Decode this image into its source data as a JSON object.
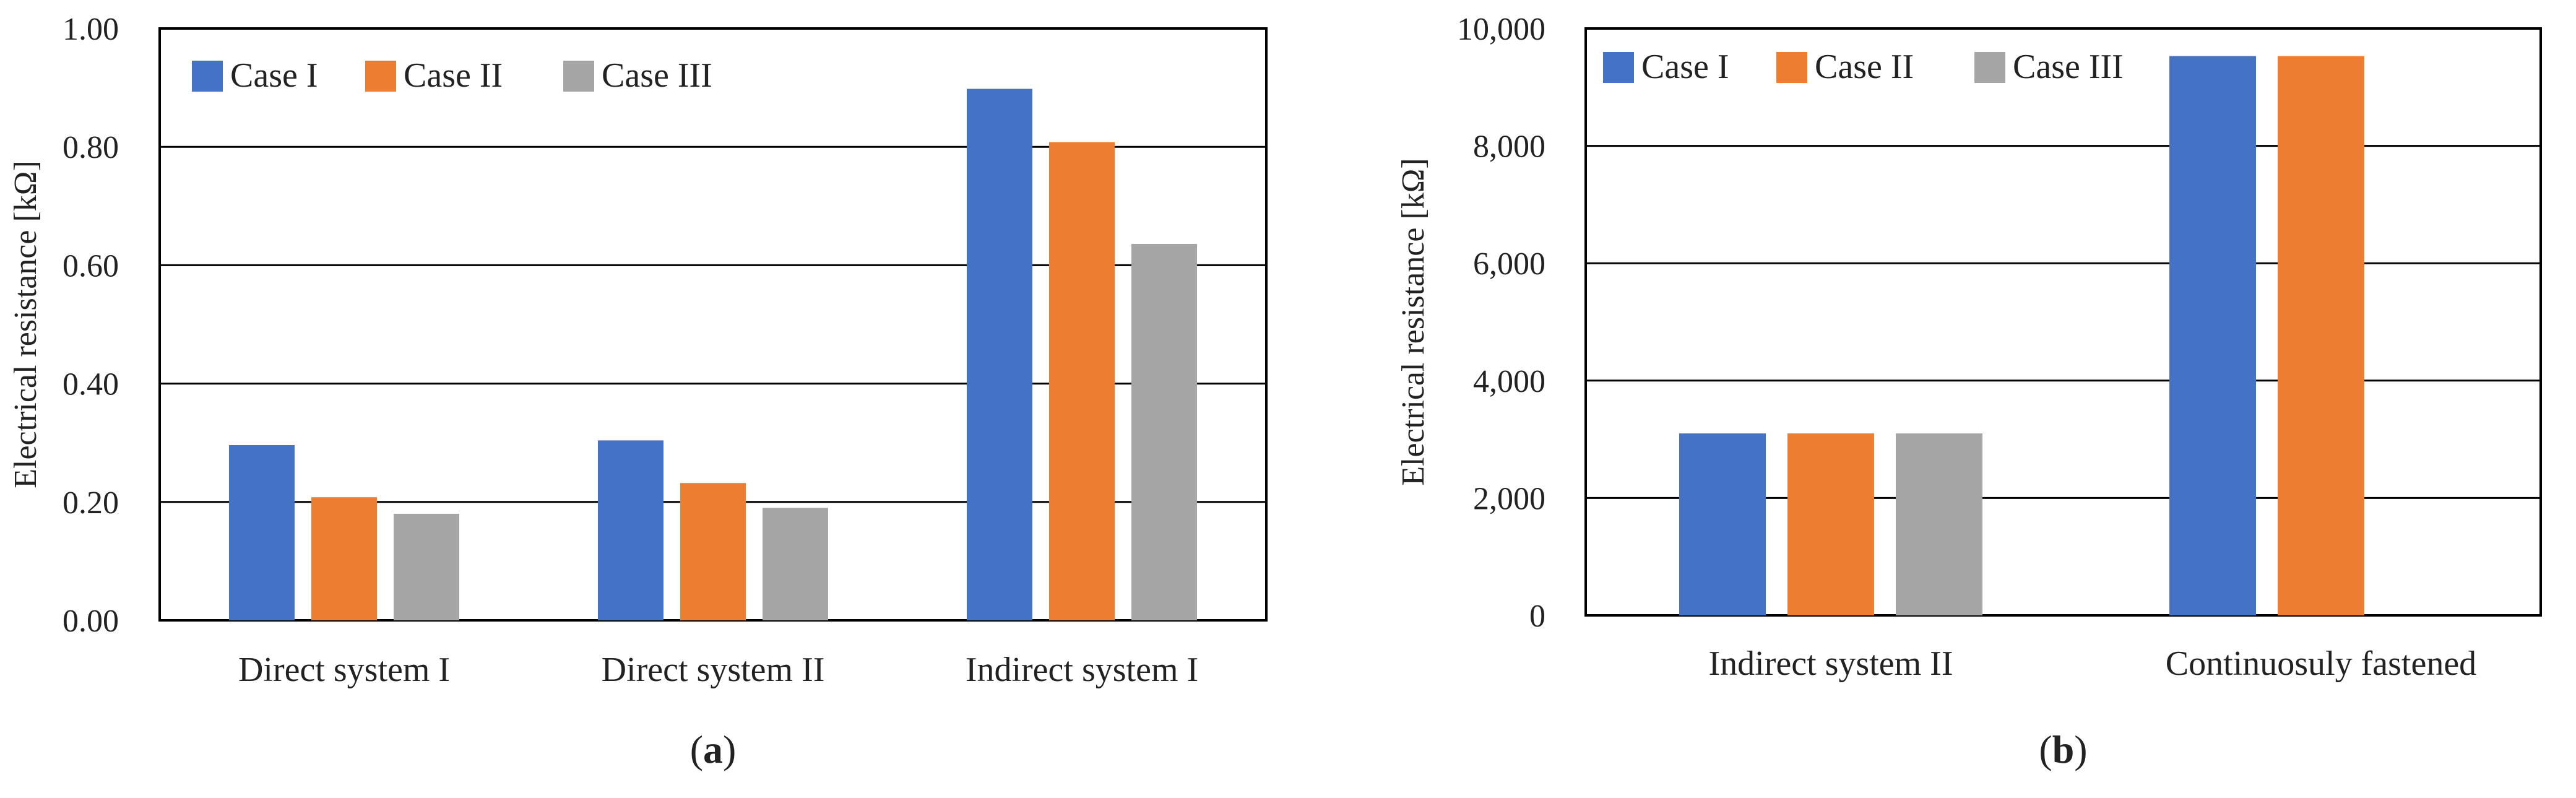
{
  "chart_data": [
    {
      "panel": "a",
      "type": "bar",
      "caption": "a",
      "ylabel": "Electrical resistance [kΩ]",
      "ylim": [
        0,
        1.0
      ],
      "yticks": [
        0,
        0.2,
        0.4,
        0.6,
        0.8,
        1.0
      ],
      "ytick_labels": [
        "0.00",
        "0.20",
        "0.40",
        "0.60",
        "0.80",
        "1.00"
      ],
      "categories": [
        "Direct system I",
        "Direct system II",
        "Indirect system I"
      ],
      "series": [
        {
          "name": "Case I",
          "color": "#4472C4",
          "values": [
            0.296,
            0.304,
            0.898
          ]
        },
        {
          "name": "Case II",
          "color": "#ED7D31",
          "values": [
            0.208,
            0.232,
            0.808
          ]
        },
        {
          "name": "Case III",
          "color": "#A5A5A5",
          "values": [
            0.18,
            0.19,
            0.636
          ]
        }
      ],
      "legend": "top-left"
    },
    {
      "panel": "b",
      "type": "bar",
      "caption": "b",
      "ylabel": "Electrical resistance [kΩ]",
      "ylim": [
        0,
        10000
      ],
      "yticks": [
        0,
        2000,
        4000,
        6000,
        8000,
        10000
      ],
      "ytick_labels": [
        "0",
        "2,000",
        "4,000",
        "6,000",
        "8,000",
        "10,000"
      ],
      "categories": [
        "Indirect system II",
        "Continuosuly fastened"
      ],
      "series": [
        {
          "name": "Case I",
          "color": "#4472C4",
          "values": [
            3100,
            9530
          ]
        },
        {
          "name": "Case II",
          "color": "#ED7D31",
          "values": [
            3100,
            9530
          ]
        },
        {
          "name": "Case III",
          "color": "#A5A5A5",
          "values": [
            3100,
            null
          ]
        }
      ],
      "legend": "top-left"
    }
  ]
}
